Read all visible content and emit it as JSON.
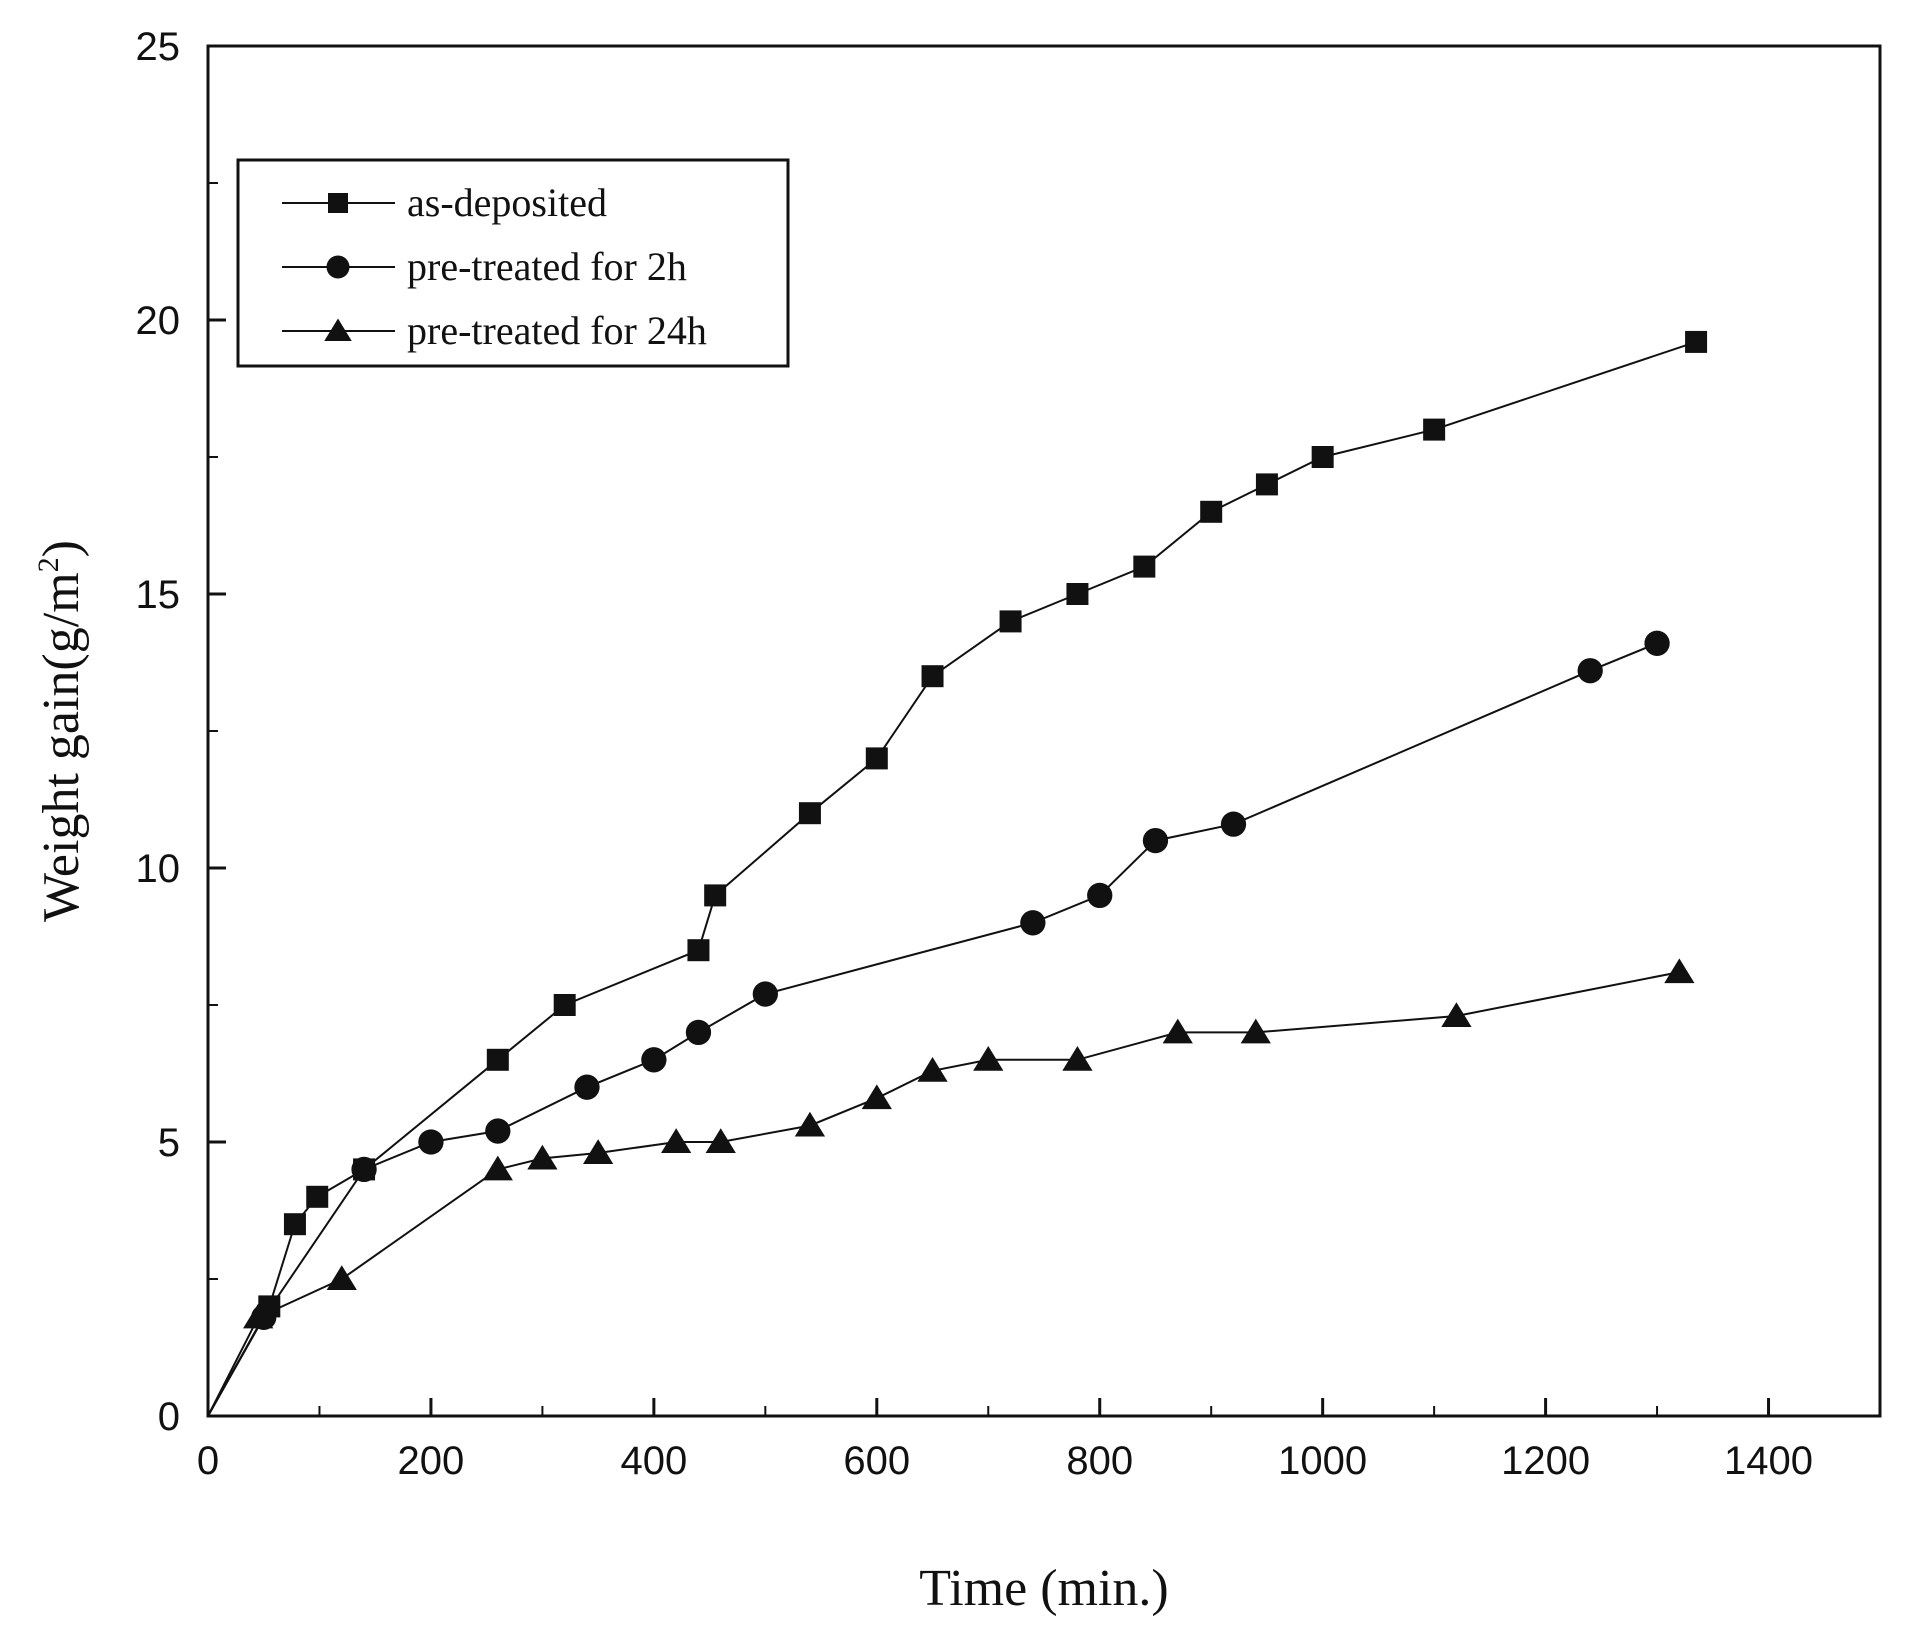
{
  "chart_data": {
    "type": "line",
    "title": "",
    "xlabel": "Time (min.)",
    "ylabel": "Weight gain(g/m²)",
    "ylabel_parts": {
      "base": "Weight gain(g/m",
      "sup": "2",
      "tail": ")"
    },
    "xlim": [
      0,
      1500
    ],
    "ylim": [
      0,
      25
    ],
    "xticks": [
      0,
      200,
      400,
      600,
      800,
      1000,
      1200,
      1400
    ],
    "yticks": [
      0,
      5,
      10,
      15,
      20,
      25
    ],
    "legend_position": "top-left",
    "series": [
      {
        "name": "as-deposited",
        "marker": "square",
        "points": [
          [
            0,
            0
          ],
          [
            55,
            2
          ],
          [
            78,
            3.5
          ],
          [
            98,
            4
          ],
          [
            140,
            4.5
          ],
          [
            260,
            6.5
          ],
          [
            320,
            7.5
          ],
          [
            440,
            8.5
          ],
          [
            455,
            9.5
          ],
          [
            540,
            11
          ],
          [
            600,
            12
          ],
          [
            650,
            13.5
          ],
          [
            720,
            14.5
          ],
          [
            780,
            15
          ],
          [
            840,
            15.5
          ],
          [
            900,
            16.5
          ],
          [
            950,
            17
          ],
          [
            1000,
            17.5
          ],
          [
            1100,
            18
          ],
          [
            1335,
            19.6
          ]
        ]
      },
      {
        "name": "pre-treated for 2h",
        "marker": "circle",
        "points": [
          [
            0,
            0
          ],
          [
            50,
            1.8
          ],
          [
            140,
            4.5
          ],
          [
            200,
            5
          ],
          [
            260,
            5.2
          ],
          [
            340,
            6
          ],
          [
            400,
            6.5
          ],
          [
            440,
            7
          ],
          [
            500,
            7.7
          ],
          [
            740,
            9
          ],
          [
            800,
            9.5
          ],
          [
            850,
            10.5
          ],
          [
            920,
            10.8
          ],
          [
            1240,
            13.6
          ],
          [
            1300,
            14.1
          ]
        ]
      },
      {
        "name": "pre-treated for 24h",
        "marker": "triangle",
        "points": [
          [
            0,
            0
          ],
          [
            45,
            1.8
          ],
          [
            120,
            2.5
          ],
          [
            260,
            4.5
          ],
          [
            300,
            4.7
          ],
          [
            350,
            4.8
          ],
          [
            420,
            5
          ],
          [
            460,
            5
          ],
          [
            540,
            5.3
          ],
          [
            600,
            5.8
          ],
          [
            650,
            6.3
          ],
          [
            700,
            6.5
          ],
          [
            780,
            6.5
          ],
          [
            870,
            7
          ],
          [
            940,
            7
          ],
          [
            1120,
            7.3
          ],
          [
            1320,
            8.1
          ]
        ]
      }
    ]
  }
}
